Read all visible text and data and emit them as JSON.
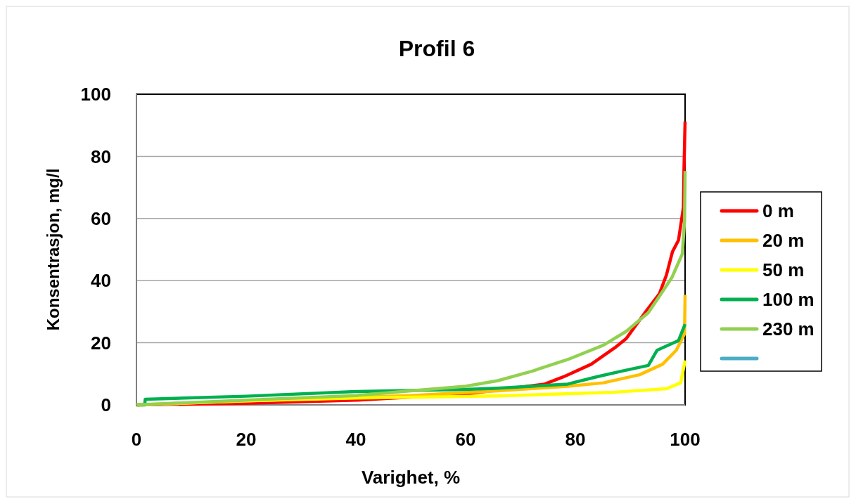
{
  "chart_data": {
    "type": "line",
    "title": "Profil 6",
    "xlabel": "Varighet, %",
    "ylabel": "Konsentrasjon, mg/l",
    "xlim": [
      0,
      100
    ],
    "ylim": [
      0,
      100
    ],
    "xticks": [
      0,
      20,
      40,
      60,
      80,
      100
    ],
    "yticks": [
      0,
      20,
      40,
      60,
      80,
      100
    ],
    "grid": "y",
    "legend": "right",
    "marker": "none",
    "line_style": "solid",
    "series": [
      {
        "name": "0 m",
        "color": "#ff0000",
        "x": [
          0,
          20,
          40,
          60,
          74.4,
          77.8,
          82.9,
          87.2,
          89.3,
          92.7,
          95.3,
          96.6,
          97.7,
          98.8,
          99.7,
          99.8,
          100
        ],
        "values": [
          0,
          0.5,
          1.5,
          3.5,
          6.7,
          9,
          13.1,
          18.4,
          21.4,
          29.7,
          35.7,
          41.8,
          49.3,
          53,
          63.6,
          75.8,
          91.2
        ]
      },
      {
        "name": "20 m",
        "color": "#ffc000",
        "x": [
          0,
          20,
          50,
          65.9,
          78.6,
          85.1,
          91.7,
          95.9,
          98.4,
          99.9,
          100
        ],
        "values": [
          0,
          1.3,
          3,
          4.5,
          6,
          7.1,
          9.7,
          13.1,
          17.6,
          22.9,
          35.4
        ]
      },
      {
        "name": "50 m",
        "color": "#ffff00",
        "x": [
          0,
          20,
          40,
          65.9,
          87.2,
          96.6,
          99.2,
          100
        ],
        "values": [
          0,
          1.3,
          2.2,
          2.9,
          4.1,
          5.2,
          7.1,
          14.3
        ]
      },
      {
        "name": "100 m",
        "color": "#00b050",
        "x": [
          0,
          1.5,
          1.6,
          20,
          40,
          60,
          65.9,
          78.6,
          83.8,
          88.5,
          93.3,
          94.9,
          98.8,
          100
        ],
        "values": [
          0,
          0,
          1.8,
          2.8,
          4.3,
          5,
          5.4,
          6.7,
          9,
          10.9,
          12.7,
          17.6,
          20.7,
          26
        ]
      },
      {
        "name": "230 m",
        "color": "#92d050",
        "x": [
          0,
          20,
          40,
          50,
          60,
          65.9,
          72.2,
          78.6,
          85.1,
          89.3,
          93.3,
          95.9,
          97.6,
          99.5,
          99.9,
          100
        ],
        "values": [
          0,
          1.5,
          3,
          4.5,
          6,
          7.8,
          10.9,
          14.6,
          19.2,
          23.7,
          29.7,
          36.5,
          41,
          48.6,
          59.1,
          75.3
        ]
      },
      {
        "color": "#4bacc6"
      }
    ]
  }
}
